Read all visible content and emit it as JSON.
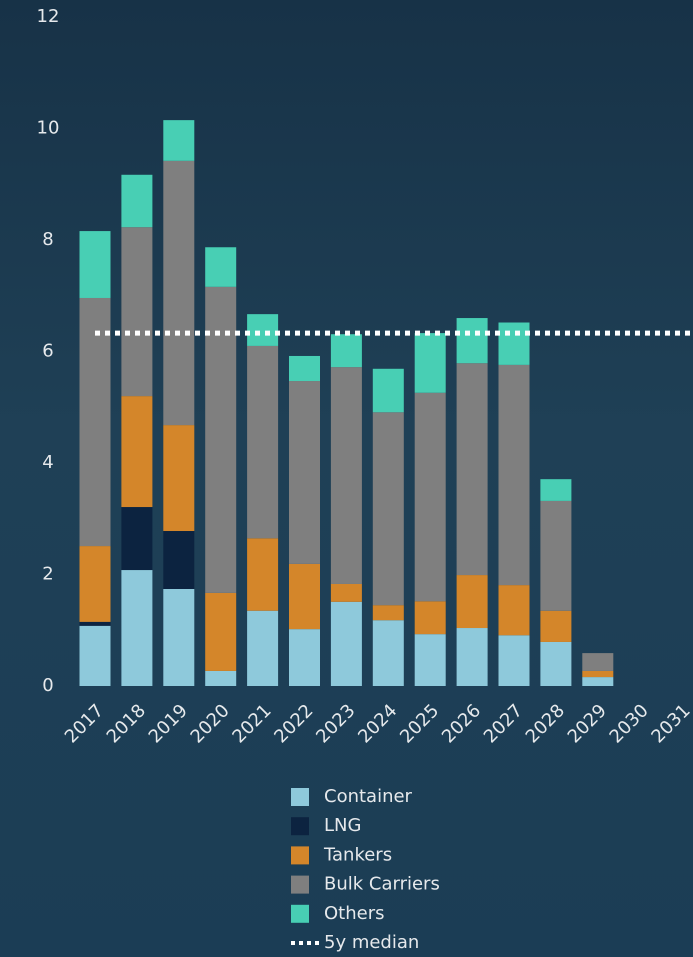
{
  "chart_data": {
    "type": "stacked-bar",
    "categories": [
      "2017",
      "2018",
      "2019",
      "2020",
      "2021",
      "2022",
      "2023",
      "2024",
      "2025",
      "2026",
      "2027",
      "2028",
      "2029",
      "2030",
      "2031"
    ],
    "series": [
      {
        "name": "Container",
        "color": "#8ec9db",
        "values": [
          1.08,
          2.08,
          1.74,
          0.27,
          1.35,
          1.02,
          1.51,
          1.18,
          0.93,
          1.04,
          0.91,
          0.79,
          0.16,
          0,
          0
        ]
      },
      {
        "name": "LNG",
        "color": "#0c2340",
        "values": [
          0.07,
          1.13,
          1.04,
          0,
          0,
          0,
          0,
          0,
          0,
          0,
          0,
          0,
          0,
          0,
          0
        ]
      },
      {
        "name": "Tankers",
        "color": "#d4862a",
        "values": [
          1.36,
          1.99,
          1.9,
          1.4,
          1.3,
          1.17,
          0.32,
          0.27,
          0.59,
          0.95,
          0.9,
          0.56,
          0.11,
          0,
          0
        ]
      },
      {
        "name": "Bulk Carriers",
        "color": "#7f7f7f",
        "values": [
          4.45,
          3.03,
          4.74,
          5.49,
          3.45,
          3.28,
          3.89,
          3.46,
          3.74,
          3.8,
          3.95,
          1.97,
          0.32,
          0,
          0
        ]
      },
      {
        "name": "Others",
        "color": "#48cfb4",
        "values": [
          1.2,
          0.94,
          0.73,
          0.71,
          0.57,
          0.45,
          0.59,
          0.78,
          1.07,
          0.81,
          0.76,
          0.39,
          0,
          0,
          0
        ]
      }
    ],
    "median": {
      "name": "5y median",
      "value": 6.33,
      "color": "#ffffff"
    },
    "ylim": [
      0,
      12
    ],
    "yticks": [
      0,
      2,
      4,
      6,
      8,
      10,
      12
    ],
    "grid": false
  }
}
